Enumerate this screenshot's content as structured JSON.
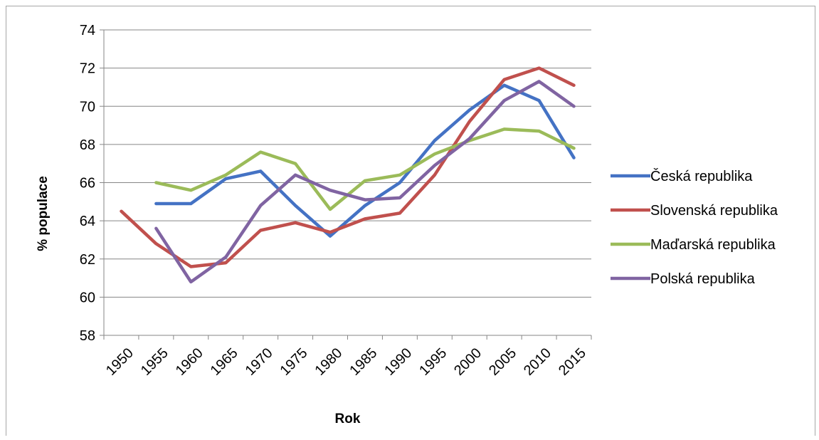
{
  "chart_data": {
    "type": "line",
    "xlabel": "Rok",
    "ylabel": "% populace",
    "ylim": [
      58,
      74
    ],
    "ytick_step": 2,
    "x": [
      "1950",
      "1955",
      "1960",
      "1965",
      "1970",
      "1975",
      "1980",
      "1985",
      "1990",
      "1995",
      "2000",
      "2005",
      "2010",
      "2015"
    ],
    "grid": true,
    "legend_position": "right",
    "series": [
      {
        "name": "Česká republika",
        "color": "#4472c4",
        "values": [
          null,
          64.9,
          64.9,
          66.2,
          66.6,
          64.8,
          63.2,
          64.8,
          66.0,
          68.2,
          69.8,
          71.1,
          70.3,
          67.3
        ]
      },
      {
        "name": "Slovenská republika",
        "color": "#c0504d",
        "values": [
          64.5,
          62.8,
          61.6,
          61.8,
          63.5,
          63.9,
          63.4,
          64.1,
          64.4,
          66.4,
          69.2,
          71.4,
          72.0,
          71.1
        ]
      },
      {
        "name": "Maďarská republika",
        "color": "#9bbb59",
        "values": [
          null,
          66.0,
          65.6,
          66.4,
          67.6,
          67.0,
          64.6,
          66.1,
          66.4,
          67.5,
          68.2,
          68.8,
          68.7,
          67.8
        ]
      },
      {
        "name": "Polská republika",
        "color": "#8064a2",
        "values": [
          null,
          63.6,
          60.8,
          62.1,
          64.8,
          66.4,
          65.6,
          65.1,
          65.2,
          66.9,
          68.3,
          70.3,
          71.3,
          70.0
        ]
      }
    ]
  }
}
